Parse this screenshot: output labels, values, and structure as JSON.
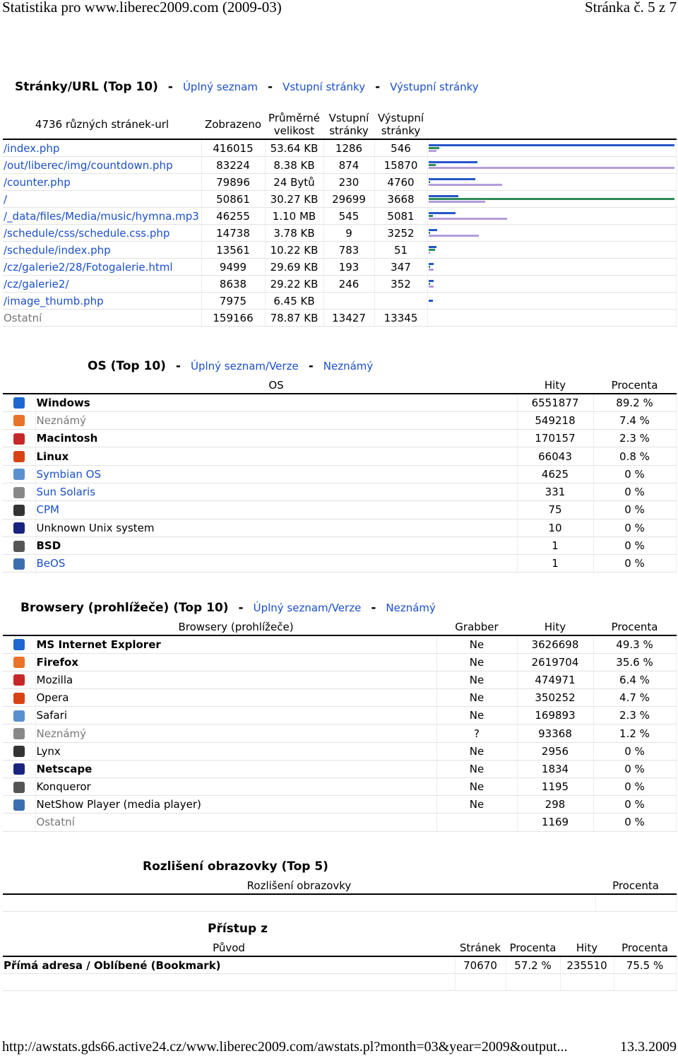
{
  "header": {
    "title": "Statistika pro www.liberec2009.com (2009-03)",
    "page": "Stránka č. 5 z 7"
  },
  "separator": "-",
  "urls": {
    "title": "Stránky/URL (Top 10)",
    "links": [
      "Úplný seznam",
      "Vstupní stránky",
      "Výstupní stránky"
    ],
    "columns": [
      "4736 různých stránek-url",
      "Zobrazeno",
      "Průměrné velikost",
      "Vstupní stránky",
      "Výstupní stránky"
    ],
    "rows": [
      [
        "/index.php",
        416015,
        "53.64 KB",
        1286,
        546
      ],
      [
        "/out/liberec/img/countdown.php",
        83224,
        "8.38 KB",
        874,
        15870
      ],
      [
        "/counter.php",
        79896,
        "24 Bytů",
        230,
        4760
      ],
      [
        "/",
        50861,
        "30.27 KB",
        29699,
        3668
      ],
      [
        "/_data/files/Media/music/hymna.mp3",
        46255,
        "1.10 MB",
        545,
        5081
      ],
      [
        "/schedule/css/schedule.css.php",
        14738,
        "3.78 KB",
        9,
        3252
      ],
      [
        "/schedule/index.php",
        13561,
        "10.22 KB",
        783,
        51
      ],
      [
        "/cz/galerie2/28/Fotogalerie.html",
        9499,
        "29.69 KB",
        193,
        347
      ],
      [
        "/cz/galerie2/",
        8638,
        "29.22 KB",
        246,
        352
      ],
      [
        "/image_thumb.php",
        7975,
        "6.45 KB",
        null,
        null
      ]
    ],
    "other": [
      "Ostatní",
      159166,
      "78.87 KB",
      13427,
      13345
    ]
  },
  "os": {
    "title": "OS (Top 10)",
    "links": [
      "Úplný seznam/Verze",
      "Neznámý"
    ],
    "columns": [
      "OS",
      "Hity",
      "Procenta"
    ],
    "rows": [
      [
        "Windows",
        6551877,
        "89.2 %",
        "bold"
      ],
      [
        "Neznámý",
        549218,
        "7.4 %",
        "muted"
      ],
      [
        "Macintosh",
        170157,
        "2.3 %",
        "bold"
      ],
      [
        "Linux",
        66043,
        "0.8 %",
        "bold"
      ],
      [
        "Symbian OS",
        4625,
        "0 %",
        "link"
      ],
      [
        "Sun Solaris",
        331,
        "0 %",
        "link"
      ],
      [
        "CPM",
        75,
        "0 %",
        "link"
      ],
      [
        "Unknown Unix system",
        10,
        "0 %",
        "plain"
      ],
      [
        "BSD",
        1,
        "0 %",
        "bold"
      ],
      [
        "BeOS",
        1,
        "0 %",
        "link"
      ]
    ]
  },
  "browsers": {
    "title": "Browsery (prohlížeče) (Top 10)",
    "links": [
      "Úplný seznam/Verze",
      "Neznámý"
    ],
    "columns": [
      "Browsery (prohlížeče)",
      "Grabber",
      "Hity",
      "Procenta"
    ],
    "rows": [
      [
        "MS Internet Explorer",
        "Ne",
        3626698,
        "49.3 %",
        "bold"
      ],
      [
        "Firefox",
        "Ne",
        2619704,
        "35.6 %",
        "bold"
      ],
      [
        "Mozilla",
        "Ne",
        474971,
        "6.4 %",
        "plain"
      ],
      [
        "Opera",
        "Ne",
        350252,
        "4.7 %",
        "plain"
      ],
      [
        "Safari",
        "Ne",
        169893,
        "2.3 %",
        "plain"
      ],
      [
        "Neznámý",
        "?",
        93368,
        "1.2 %",
        "muted"
      ],
      [
        "Lynx",
        "Ne",
        2956,
        "0 %",
        "plain"
      ],
      [
        "Netscape",
        "Ne",
        1834,
        "0 %",
        "bold"
      ],
      [
        "Konqueror",
        "Ne",
        1195,
        "0 %",
        "plain"
      ],
      [
        "NetShow Player (media player)",
        "Ne",
        298,
        "0 %",
        "plain"
      ],
      [
        "Ostatní",
        null,
        1169,
        "0 %",
        "muted"
      ]
    ]
  },
  "resolution": {
    "title": "Rozlišení obrazovky (Top 5)",
    "columns": [
      "Rozlišení obrazovky",
      "Procenta"
    ]
  },
  "referrers": {
    "title": "Přístup z",
    "columns": [
      "Původ",
      "Stránek",
      "Procenta",
      "Hity",
      "Procenta"
    ],
    "rows": [
      [
        "Přímá adresa / Oblíbené (Bookmark)",
        70670,
        "57.2 %",
        235510,
        "75.5 %"
      ]
    ]
  },
  "footer": {
    "url": "http://awstats.gds66.active24.cz/www.liberec2009.com/awstats.pl?month=03&year=2009&output...",
    "date": "13.3.2009"
  }
}
